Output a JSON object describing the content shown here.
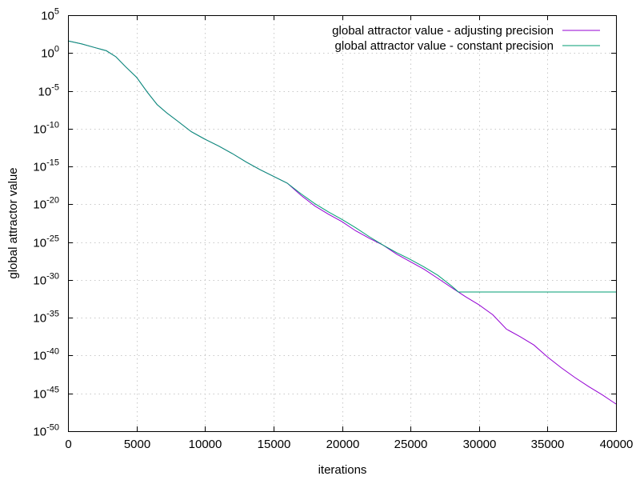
{
  "chart_data": {
    "type": "line",
    "title": "",
    "xlabel": "iterations",
    "ylabel": "global attractor value",
    "xlim": [
      0,
      40000
    ],
    "ylim_log10": [
      -50,
      5
    ],
    "y_scale": "log",
    "grid": true,
    "legend_position": "top-right",
    "x_ticks": [
      0,
      5000,
      10000,
      15000,
      20000,
      25000,
      30000,
      35000,
      40000
    ],
    "x_tick_labels": [
      "0",
      "5000",
      "10000",
      "15000",
      "20000",
      "25000",
      "30000",
      "35000",
      "40000"
    ],
    "y_ticks": [
      {
        "base": "10",
        "exp": "5"
      },
      {
        "base": "10",
        "exp": "0"
      },
      {
        "base": "10",
        "exp": "-5"
      },
      {
        "base": "10",
        "exp": "-10"
      },
      {
        "base": "10",
        "exp": "-15"
      },
      {
        "base": "10",
        "exp": "-20"
      },
      {
        "base": "10",
        "exp": "-25"
      },
      {
        "base": "10",
        "exp": "-30"
      },
      {
        "base": "10",
        "exp": "-35"
      },
      {
        "base": "10",
        "exp": "-40"
      },
      {
        "base": "10",
        "exp": "-45"
      },
      {
        "base": "10",
        "exp": "-50"
      }
    ],
    "series": [
      {
        "name": "global attractor value - adjusting precision",
        "color": "#9400d3",
        "points": [
          [
            0,
            1.6
          ],
          [
            1000,
            1.2
          ],
          [
            2000,
            0.7
          ],
          [
            2800,
            0.3
          ],
          [
            3500,
            -0.5
          ],
          [
            4200,
            -1.8
          ],
          [
            5000,
            -3.2
          ],
          [
            5800,
            -5.2
          ],
          [
            6500,
            -6.8
          ],
          [
            7200,
            -7.9
          ],
          [
            8000,
            -9.0
          ],
          [
            9000,
            -10.4
          ],
          [
            10000,
            -11.4
          ],
          [
            11000,
            -12.3
          ],
          [
            12000,
            -13.3
          ],
          [
            13000,
            -14.4
          ],
          [
            14000,
            -15.4
          ],
          [
            15000,
            -16.3
          ],
          [
            16000,
            -17.2
          ],
          [
            17000,
            -18.8
          ],
          [
            18000,
            -20.2
          ],
          [
            19000,
            -21.3
          ],
          [
            20000,
            -22.3
          ],
          [
            21000,
            -23.5
          ],
          [
            22000,
            -24.5
          ],
          [
            23000,
            -25.4
          ],
          [
            24000,
            -26.6
          ],
          [
            25000,
            -27.6
          ],
          [
            26000,
            -28.6
          ],
          [
            27000,
            -29.8
          ],
          [
            28000,
            -31.0
          ],
          [
            29000,
            -32.2
          ],
          [
            30000,
            -33.3
          ],
          [
            31000,
            -34.6
          ],
          [
            32000,
            -36.5
          ],
          [
            33000,
            -37.5
          ],
          [
            34000,
            -38.6
          ],
          [
            35000,
            -40.2
          ],
          [
            36000,
            -41.6
          ],
          [
            37000,
            -42.9
          ],
          [
            38000,
            -44.1
          ],
          [
            39000,
            -45.2
          ],
          [
            40000,
            -46.4
          ]
        ]
      },
      {
        "name": "global attractor value - constant precision",
        "color": "#009e73",
        "points": [
          [
            0,
            1.6
          ],
          [
            1000,
            1.2
          ],
          [
            2000,
            0.7
          ],
          [
            2800,
            0.3
          ],
          [
            3500,
            -0.5
          ],
          [
            4200,
            -1.8
          ],
          [
            5000,
            -3.2
          ],
          [
            5800,
            -5.2
          ],
          [
            6500,
            -6.8
          ],
          [
            7200,
            -7.9
          ],
          [
            8000,
            -9.0
          ],
          [
            9000,
            -10.4
          ],
          [
            10000,
            -11.4
          ],
          [
            11000,
            -12.3
          ],
          [
            12000,
            -13.3
          ],
          [
            13000,
            -14.4
          ],
          [
            14000,
            -15.4
          ],
          [
            15000,
            -16.3
          ],
          [
            16000,
            -17.2
          ],
          [
            17000,
            -18.6
          ],
          [
            18000,
            -19.9
          ],
          [
            19000,
            -21.0
          ],
          [
            20000,
            -22.0
          ],
          [
            21000,
            -23.1
          ],
          [
            22000,
            -24.3
          ],
          [
            23000,
            -25.4
          ],
          [
            24000,
            -26.4
          ],
          [
            25000,
            -27.3
          ],
          [
            26000,
            -28.3
          ],
          [
            27000,
            -29.4
          ],
          [
            28000,
            -30.8
          ],
          [
            28500,
            -31.6
          ],
          [
            29000,
            -31.6
          ],
          [
            32000,
            -31.6
          ],
          [
            36000,
            -31.6
          ],
          [
            40000,
            -31.6
          ]
        ]
      }
    ]
  }
}
